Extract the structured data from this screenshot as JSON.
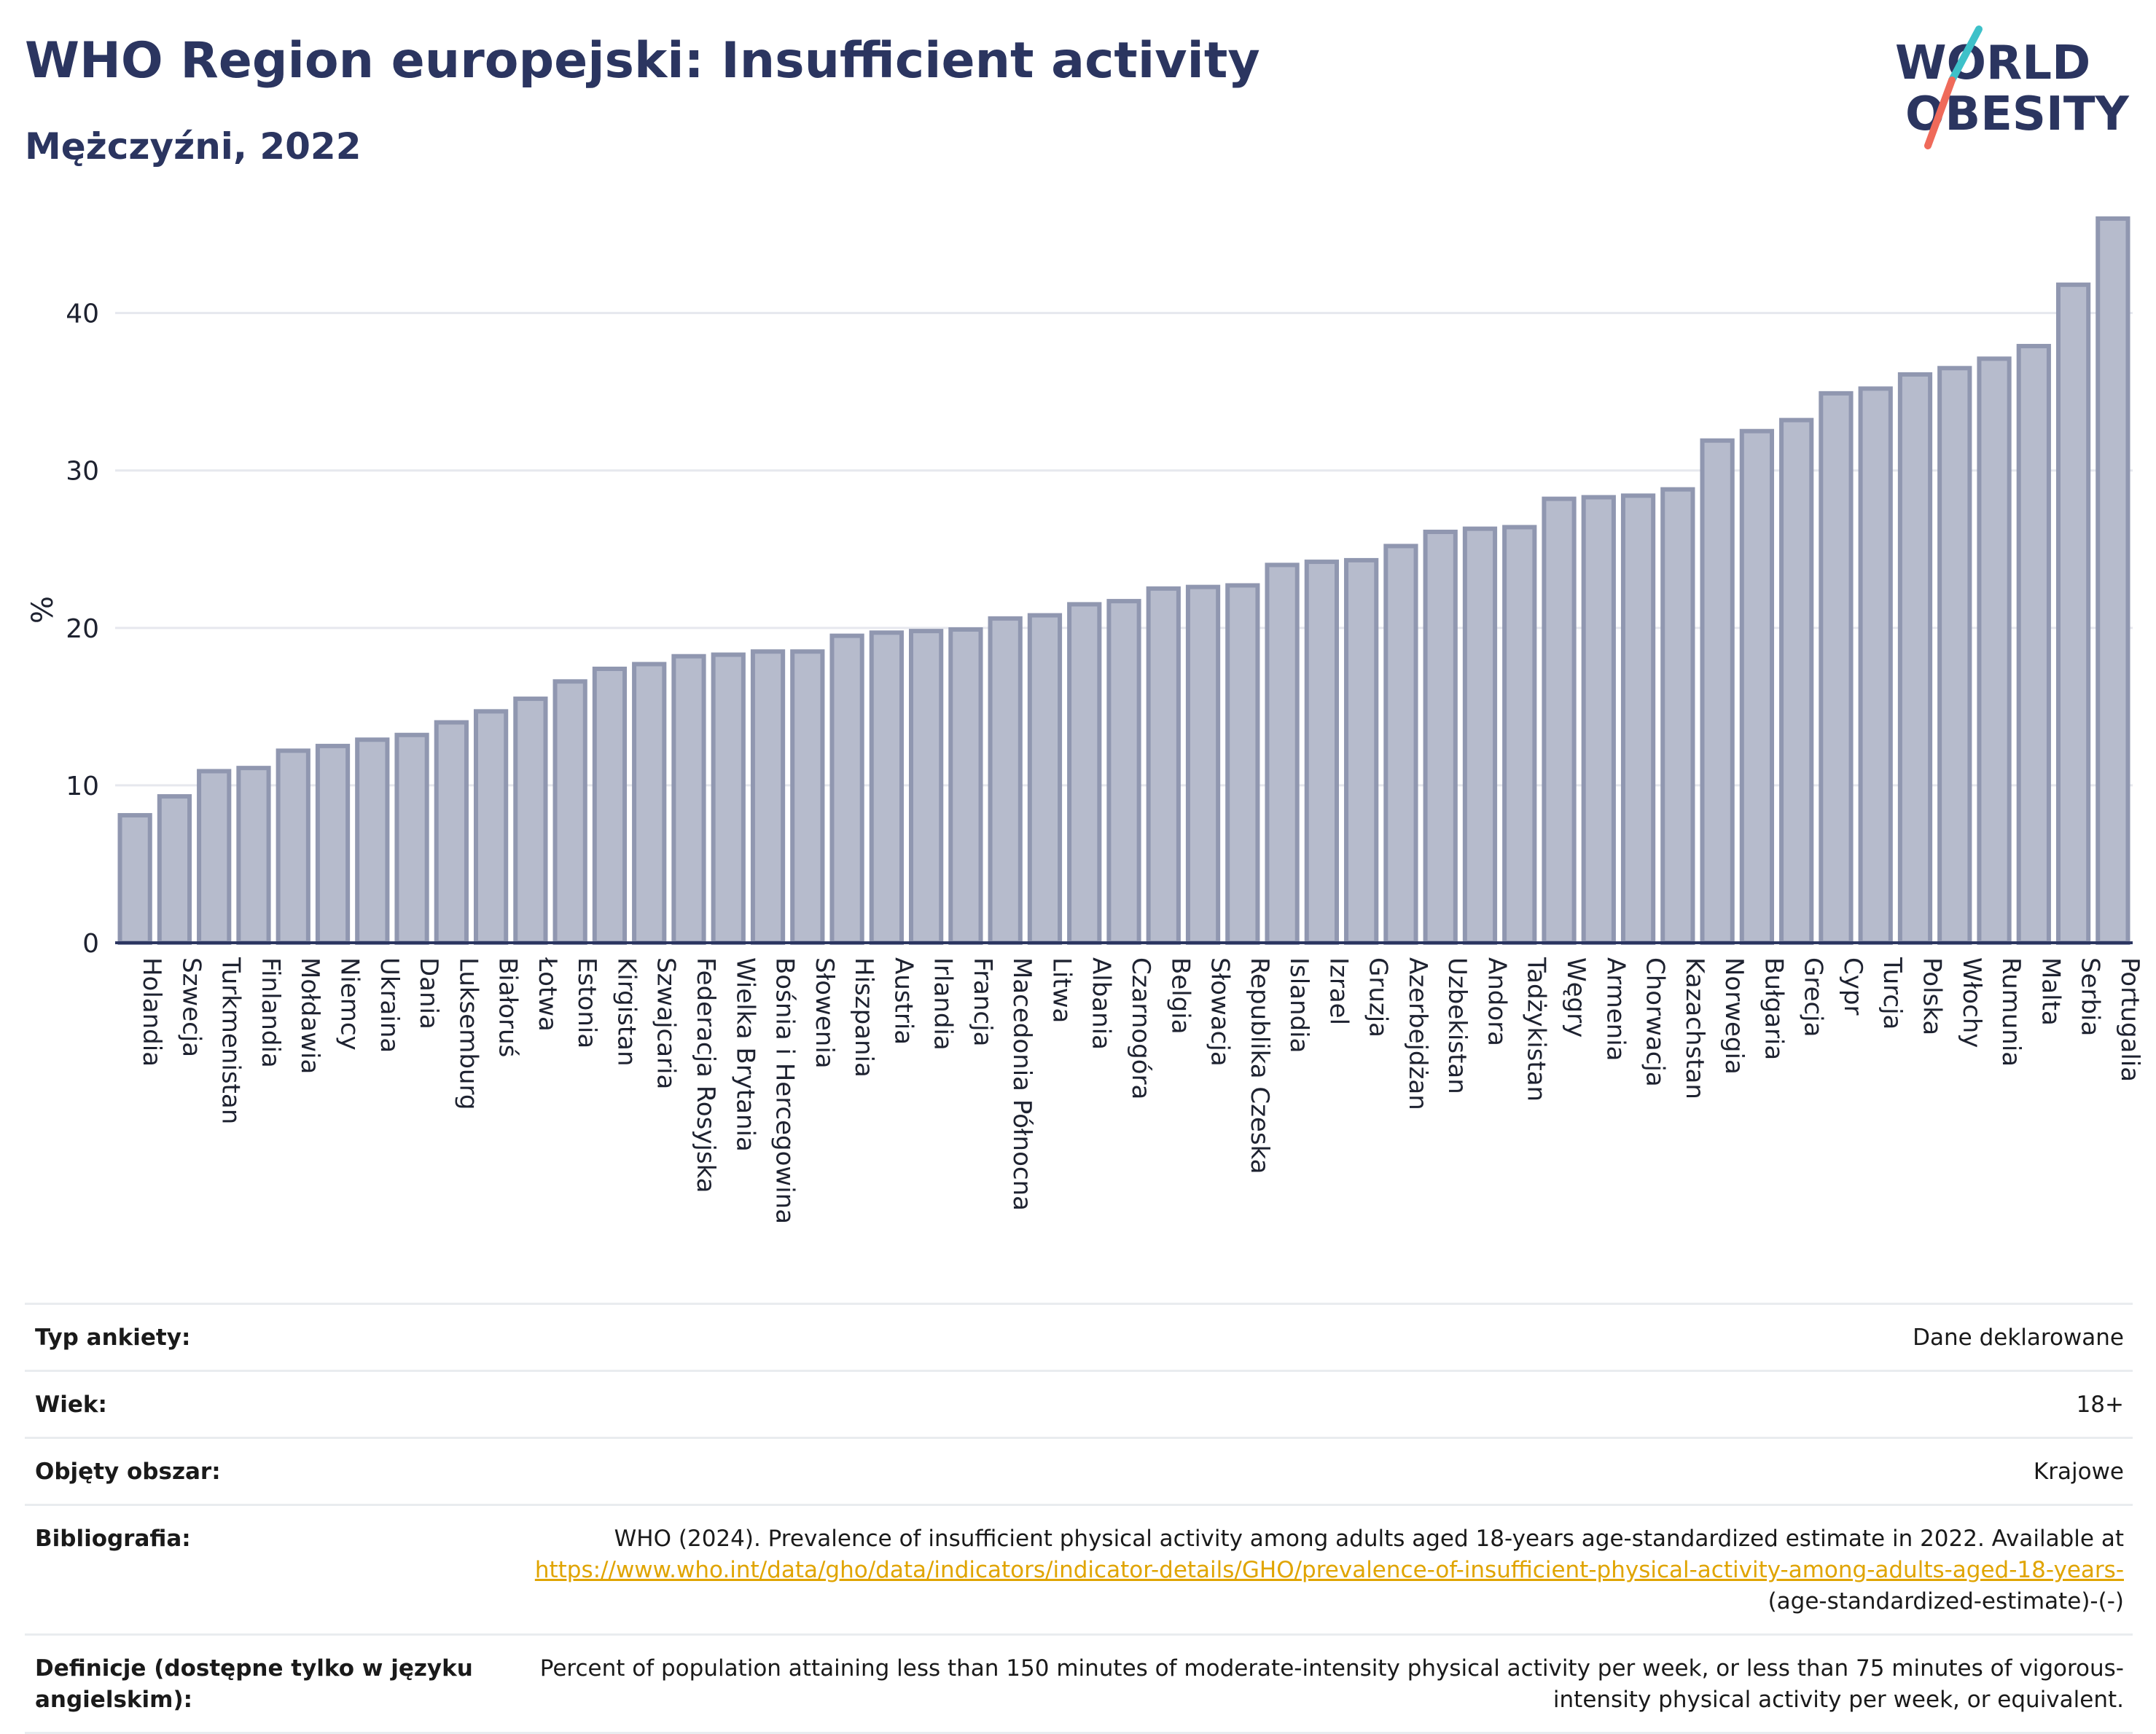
{
  "header": {
    "title": "WHO Region europejski: Insufficient activity",
    "subtitle": "Mężczyźni, 2022",
    "logo_line1": "WORLD",
    "logo_line2": "OBESITY"
  },
  "colors": {
    "bar_fill": "#b6bbcc",
    "bar_stroke": "#9097b0",
    "text_dark": "#2b3560",
    "link": "#e0a400",
    "logo_teal": "#3ec1c9",
    "logo_coral": "#ef6a5a"
  },
  "chart_data": {
    "type": "bar",
    "ylabel": "%",
    "ylim": [
      0,
      46
    ],
    "yticks": [
      0,
      10,
      20,
      30,
      40
    ],
    "grid": true,
    "categories": [
      "Holandia",
      "Szwecja",
      "Turkmenistan",
      "Finlandia",
      "Mołdawia",
      "Niemcy",
      "Ukraina",
      "Dania",
      "Luksemburg",
      "Białoruś",
      "Łotwa",
      "Estonia",
      "Kirgistan",
      "Szwajcaria",
      "Federacja Rosyjska",
      "Wielka Brytania",
      "Bośnia i Hercegowina",
      "Słowenia",
      "Hiszpania",
      "Austria",
      "Irlandia",
      "Francja",
      "Macedonia Północna",
      "Litwa",
      "Albania",
      "Czarnogóra",
      "Belgia",
      "Słowacja",
      "Republika Czeska",
      "Islandia",
      "Izrael",
      "Gruzja",
      "Azerbejdżan",
      "Uzbekistan",
      "Andora",
      "Tadżykistan",
      "Węgry",
      "Armenia",
      "Chorwacja",
      "Kazachstan",
      "Norwegia",
      "Bułgaria",
      "Grecja",
      "Cypr",
      "Turcja",
      "Polska",
      "Włochy",
      "Rumunia",
      "Malta",
      "Serbia",
      "Portugalia"
    ],
    "values": [
      8.1,
      9.3,
      10.9,
      11.1,
      12.2,
      12.5,
      12.9,
      13.2,
      14.0,
      14.7,
      15.5,
      16.6,
      17.4,
      17.7,
      18.2,
      18.3,
      18.5,
      18.5,
      19.5,
      19.7,
      19.8,
      19.9,
      20.6,
      20.8,
      21.5,
      21.7,
      22.5,
      22.6,
      22.7,
      24.0,
      24.2,
      24.3,
      25.2,
      26.1,
      26.3,
      26.4,
      28.2,
      28.3,
      28.4,
      28.8,
      31.9,
      32.5,
      33.2,
      34.9,
      35.2,
      36.1,
      36.5,
      37.1,
      37.9,
      41.8,
      46.0
    ]
  },
  "meta": [
    {
      "label": "Typ ankiety:",
      "value": "Dane deklarowane"
    },
    {
      "label": "Wiek:",
      "value": "18+"
    },
    {
      "label": "Objęty obszar:",
      "value": "Krajowe"
    },
    {
      "label": "Bibliografia:",
      "value_prefix": "WHO (2024). Prevalence of insufficient physical activity among adults aged 18-years age-standardized estimate in 2022. Available at ",
      "link": "https://www.who.int/data/gho/data/indicators/indicator-details/GHO/prevalence-of-insufficient-physical-activity-among-adults-aged-18-years-",
      "value_suffix": "(age-standardized-estimate)-(-)"
    },
    {
      "label": "Definicje (dostępne tylko w języku angielskim):",
      "value": "Percent of population attaining less than 150 minutes of moderate-intensity physical activity per week, or less than 75 minutes of vigorous-intensity physical activity per week, or equivalent."
    }
  ]
}
